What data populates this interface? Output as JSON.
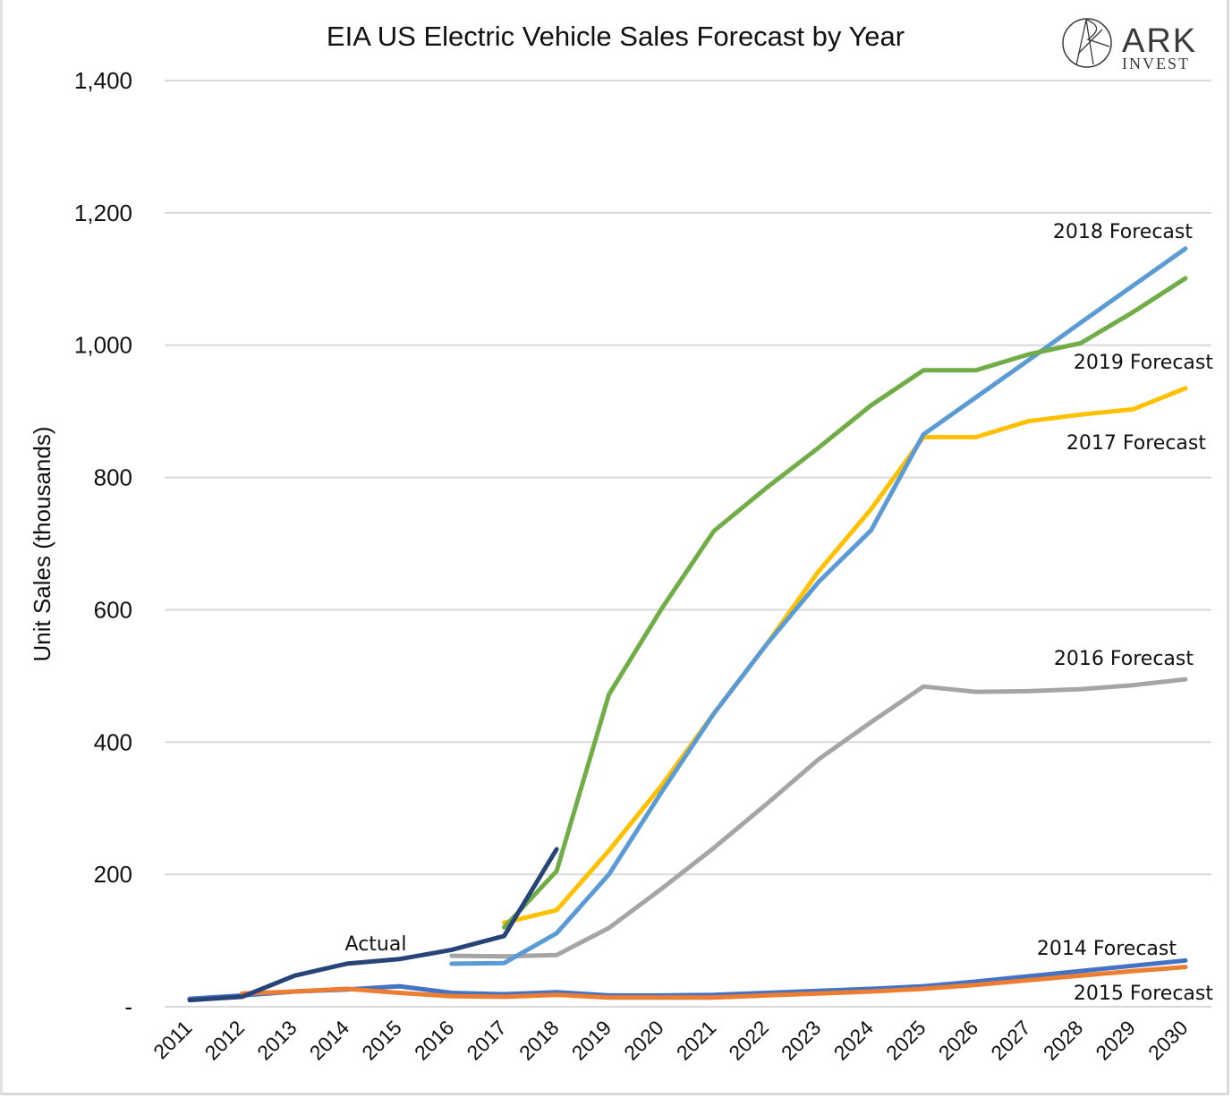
{
  "logo": {
    "brand": "ARK",
    "sub": "INVEST"
  },
  "chart_data": {
    "type": "line",
    "title": "EIA US Electric Vehicle Sales Forecast by Year",
    "xlabel": "",
    "ylabel": "Unit Sales (thousands)",
    "ylim": [
      0,
      1400
    ],
    "yticks": [
      0,
      200,
      400,
      600,
      800,
      1000,
      1200,
      1400
    ],
    "ytick_labels": [
      "-",
      "200",
      "400",
      "600",
      "800",
      "1,000",
      "1,200",
      "1,400"
    ],
    "x": [
      2011,
      2012,
      2013,
      2014,
      2015,
      2016,
      2017,
      2018,
      2019,
      2020,
      2021,
      2022,
      2023,
      2024,
      2025,
      2026,
      2027,
      2028,
      2029,
      2030
    ],
    "grid": true,
    "legend": "none (inline series labels at right)",
    "series": [
      {
        "name": "2014 Forecast",
        "label": "2014 Forecast",
        "color": "#4472c4",
        "values": [
          12,
          17,
          23,
          26,
          31,
          21,
          19,
          22,
          17,
          17,
          18,
          21,
          24,
          27,
          31,
          38,
          46,
          54,
          62,
          70
        ]
      },
      {
        "name": "2015 Forecast",
        "label": "2015 Forecast",
        "color": "#ed7d31",
        "values": [
          null,
          20,
          23,
          27,
          21,
          16,
          15,
          18,
          14,
          14,
          14,
          17,
          20,
          23,
          27,
          33,
          40,
          47,
          54,
          60
        ]
      },
      {
        "name": "2016 Forecast",
        "label": "2016 Forecast",
        "color": "#a5a5a5",
        "values": [
          null,
          null,
          null,
          null,
          null,
          77,
          76,
          78,
          119,
          178,
          240,
          306,
          374,
          430,
          484,
          476,
          477,
          480,
          486,
          495
        ]
      },
      {
        "name": "2017 Forecast",
        "label": "2017 Forecast",
        "color": "#ffc000",
        "values": [
          null,
          null,
          null,
          null,
          null,
          null,
          127,
          146,
          236,
          334,
          443,
          547,
          658,
          752,
          861,
          861,
          885,
          895,
          903,
          935
        ]
      },
      {
        "name": "2018 Forecast",
        "label": "2018 Forecast",
        "color": "#5b9bd5",
        "values": [
          null,
          null,
          null,
          null,
          null,
          65,
          66,
          111,
          200,
          324,
          443,
          547,
          642,
          720,
          865,
          921,
          977,
          1034,
          1090,
          1146
        ]
      },
      {
        "name": "2019 Forecast",
        "label": "2019 Forecast",
        "color": "#70ad47",
        "values": [
          null,
          null,
          null,
          null,
          null,
          null,
          120,
          205,
          472,
          601,
          719,
          784,
          845,
          909,
          962,
          962,
          986,
          1003,
          1050,
          1101
        ]
      },
      {
        "name": "Actual",
        "label": "Actual",
        "color": "#264478",
        "values": [
          10,
          15,
          47,
          65,
          72,
          86,
          107,
          238,
          null,
          null,
          null,
          null,
          null,
          null,
          null,
          null,
          null,
          null,
          null,
          null
        ]
      }
    ]
  }
}
